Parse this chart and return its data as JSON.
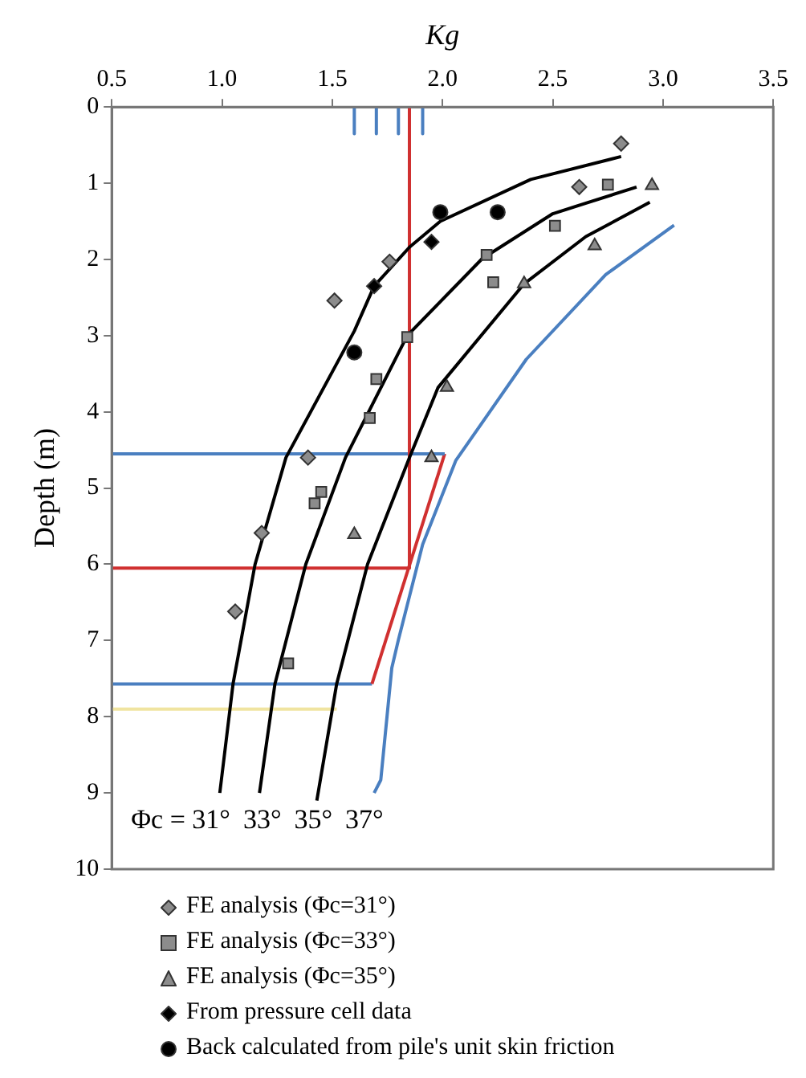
{
  "chart_data": {
    "type": "scatter",
    "xlabel": "Kg",
    "ylabel": "Depth (m)",
    "xlim": [
      0.5,
      3.5
    ],
    "xticks": [
      {
        "value": 0.5,
        "label": "0.5"
      },
      {
        "value": 1,
        "label": "1.0"
      },
      {
        "value": 1.5,
        "label": "1.5"
      },
      {
        "value": 2,
        "label": "2.0"
      },
      {
        "value": 2.5,
        "label": "2.5"
      },
      {
        "value": 3,
        "label": "3.0"
      },
      {
        "value": 3.5,
        "label": "3.5"
      }
    ],
    "ylim": [
      10,
      0
    ],
    "yticks": [
      0,
      1,
      2,
      3,
      4,
      5,
      6,
      7,
      8,
      9,
      10
    ],
    "grid": false,
    "legend": "bottom",
    "annotations": [
      "Φc = 31°",
      "33°",
      "35°",
      "37°"
    ],
    "series": [
      {
        "name": "FE analysis (Φc=31°)",
        "marker": "diamond",
        "color": "#8c8c8c",
        "x": [
          2.81,
          2.62,
          1.76,
          1.51,
          1.39,
          1.18,
          1.06
        ],
        "values": [
          0.48,
          1.05,
          2.03,
          2.54,
          4.6,
          5.59,
          6.62
        ]
      },
      {
        "name": "FE analysis (Φc=33°)",
        "marker": "square",
        "color": "#8c8c8c",
        "x": [
          2.75,
          2.51,
          2.2,
          2.23,
          1.84,
          1.7,
          1.67,
          1.45,
          1.42,
          1.3
        ],
        "values": [
          1.02,
          1.56,
          1.94,
          2.3,
          3.02,
          3.57,
          4.08,
          5.05,
          5.2,
          7.3
        ]
      },
      {
        "name": "FE analysis (Φc=35°)",
        "marker": "triangle",
        "color": "#8c8c8c",
        "x": [
          2.95,
          2.69,
          2.37,
          2.02,
          1.95,
          1.6
        ],
        "values": [
          1.03,
          1.82,
          2.32,
          3.68,
          4.6,
          5.61
        ]
      },
      {
        "name": "From pressure cell data",
        "marker": "diamond",
        "color": "#000000",
        "x": [
          1.95,
          1.69
        ],
        "values": [
          1.77,
          2.35
        ]
      },
      {
        "name": "Back calculated from pile's unit skin friction",
        "marker": "circle",
        "color": "#000000",
        "x": [
          1.99,
          2.25,
          1.6
        ],
        "values": [
          1.38,
          1.38,
          3.22
        ]
      },
      {
        "type": "line",
        "marker": "none",
        "color": "#000000",
        "x": [
          2.81,
          2.4,
          1.99,
          1.85,
          1.69,
          1.6,
          1.29,
          1.15,
          1.05,
          0.99
        ],
        "values": [
          0.65,
          0.95,
          1.5,
          1.84,
          2.35,
          2.94,
          4.6,
          6.0,
          7.57,
          9.0
        ]
      },
      {
        "type": "line",
        "marker": "none",
        "color": "#000000",
        "x": [
          2.88,
          2.5,
          2.18,
          1.84,
          1.56,
          1.38,
          1.24,
          1.17
        ],
        "values": [
          1.05,
          1.4,
          1.99,
          3.0,
          4.6,
          6.0,
          7.57,
          9.0
        ]
      },
      {
        "type": "line",
        "marker": "none",
        "color": "#000000",
        "x": [
          2.94,
          2.65,
          2.37,
          1.98,
          1.85,
          1.66,
          1.52,
          1.43
        ],
        "values": [
          1.25,
          1.7,
          2.32,
          3.68,
          4.6,
          6.0,
          7.57,
          9.1
        ]
      },
      {
        "type": "line",
        "marker": "none",
        "color": "#4a7fc0",
        "x": [
          3.05,
          2.74,
          2.38,
          2.06,
          1.91,
          1.8,
          1.77,
          1.72,
          1.69
        ],
        "values": [
          1.55,
          2.2,
          3.31,
          4.64,
          5.74,
          6.99,
          7.36,
          8.83,
          9.0
        ]
      },
      {
        "type": "line",
        "marker": "none",
        "color": "#d03030",
        "x": [
          1.85,
          1.85,
          0.5
        ],
        "values": [
          0,
          6.05,
          6.05
        ]
      },
      {
        "type": "line",
        "marker": "none",
        "color": "#4a7fc0",
        "x": [
          0.5,
          2.01
        ],
        "values": [
          4.55,
          4.55
        ]
      },
      {
        "type": "line",
        "marker": "none",
        "color": "#d03030",
        "x": [
          2.01,
          1.68
        ],
        "values": [
          4.55,
          7.57
        ]
      },
      {
        "type": "line",
        "marker": "none",
        "color": "#4a7fc0",
        "x": [
          0.5,
          1.68
        ],
        "values": [
          7.57,
          7.57
        ]
      },
      {
        "type": "line",
        "marker": "none",
        "color": "#f0e4a0",
        "x": [
          0.5,
          1.52
        ],
        "values": [
          7.9,
          7.9
        ]
      },
      {
        "type": "line",
        "marker": "none",
        "color": "#4a7fc0",
        "x": [
          1.6,
          1.6
        ],
        "values": [
          0,
          0.35
        ]
      },
      {
        "type": "line",
        "marker": "none",
        "color": "#4a7fc0",
        "x": [
          1.7,
          1.7
        ],
        "values": [
          0,
          0.35
        ]
      },
      {
        "type": "line",
        "marker": "none",
        "color": "#4a7fc0",
        "x": [
          1.8,
          1.8
        ],
        "values": [
          0,
          0.35
        ]
      },
      {
        "type": "line",
        "marker": "none",
        "color": "#4a7fc0",
        "x": [
          1.91,
          1.91
        ],
        "values": [
          0,
          0.35
        ]
      }
    ]
  }
}
